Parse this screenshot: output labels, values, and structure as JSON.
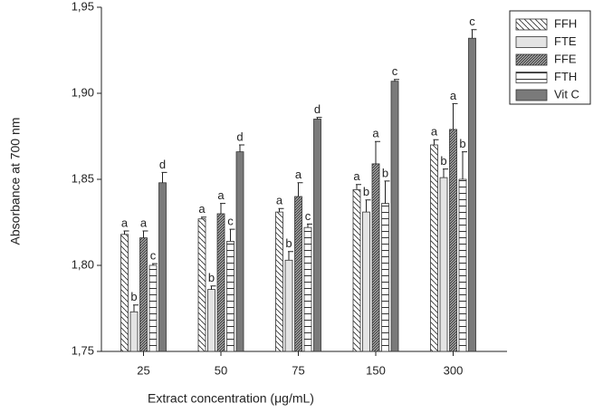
{
  "chart_data": {
    "type": "bar",
    "x_label": "Extract concentration (μg/mL)",
    "y_label": "Absorbance at 700 nm",
    "categories": [
      "25",
      "50",
      "75",
      "150",
      "300"
    ],
    "ylim": [
      1.75,
      1.95
    ],
    "yticks": [
      {
        "value": 1.75,
        "label": "1,75"
      },
      {
        "value": 1.8,
        "label": "1,80"
      },
      {
        "value": 1.85,
        "label": "1,85"
      },
      {
        "value": 1.9,
        "label": "1,90"
      },
      {
        "value": 1.95,
        "label": "1,95"
      }
    ],
    "legend": "upper right",
    "series": [
      {
        "name": "FFH",
        "color": "#ffffff",
        "pattern": "hatch-back",
        "values": [
          1.818,
          1.827,
          1.831,
          1.844,
          1.87
        ],
        "errors": [
          0.002,
          0.001,
          0.002,
          0.003,
          0.003
        ],
        "letters": [
          "a",
          "a",
          "a",
          "a",
          "a"
        ]
      },
      {
        "name": "FTE",
        "color": "#e4e4e4",
        "pattern": "solid",
        "values": [
          1.773,
          1.786,
          1.803,
          1.831,
          1.851
        ],
        "errors": [
          0.004,
          0.002,
          0.005,
          0.007,
          0.005
        ],
        "letters": [
          "b",
          "b",
          "b",
          "b",
          "b"
        ]
      },
      {
        "name": "FFE",
        "color": "#8c8c8c",
        "pattern": "hatch-fwd",
        "values": [
          1.816,
          1.83,
          1.84,
          1.859,
          1.879
        ],
        "errors": [
          0.004,
          0.006,
          0.008,
          0.013,
          0.015
        ],
        "letters": [
          "a",
          "a",
          "a",
          "a",
          "a"
        ]
      },
      {
        "name": "FTH",
        "color": "#ffffff",
        "pattern": "horizontal",
        "values": [
          1.8,
          1.814,
          1.822,
          1.836,
          1.85
        ],
        "errors": [
          0.001,
          0.007,
          0.002,
          0.013,
          0.016
        ],
        "letters": [
          "c",
          "c",
          "c",
          "b",
          "b"
        ]
      },
      {
        "name": "Vit C",
        "color": "#7a7a7a",
        "pattern": "solid",
        "values": [
          1.848,
          1.866,
          1.885,
          1.907,
          1.932
        ],
        "errors": [
          0.006,
          0.004,
          0.001,
          0.001,
          0.005
        ],
        "letters": [
          "d",
          "d",
          "d",
          "c",
          "c"
        ]
      }
    ]
  }
}
